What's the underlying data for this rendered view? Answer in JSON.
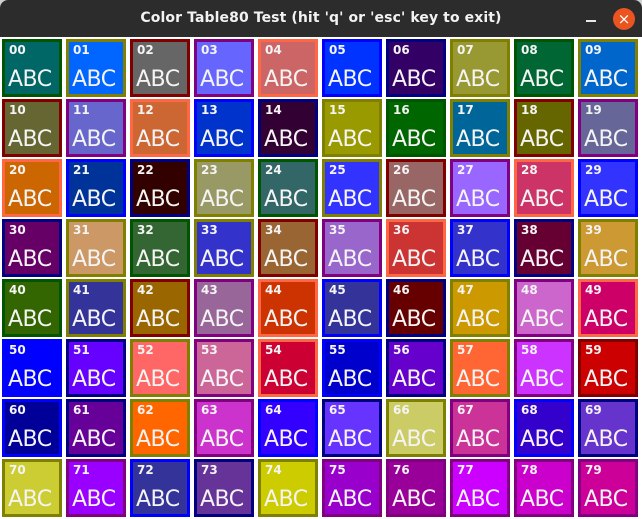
{
  "window": {
    "title": "Color Table80 Test  (hit 'q' or 'esc' key to exit)",
    "close_icon": "×"
  },
  "cell_text": "ABC",
  "cells": [
    {
      "label": "00",
      "fill": "#006666",
      "border": "#005500"
    },
    {
      "label": "01",
      "fill": "#0066ff",
      "border": "#808000"
    },
    {
      "label": "02",
      "fill": "#666666",
      "border": "#800000"
    },
    {
      "label": "03",
      "fill": "#6666ff",
      "border": "#800080"
    },
    {
      "label": "04",
      "fill": "#cc6666",
      "border": "#ff6644"
    },
    {
      "label": "05",
      "fill": "#0033ff",
      "border": "#0000ff"
    },
    {
      "label": "06",
      "fill": "#330066",
      "border": "#000080"
    },
    {
      "label": "07",
      "fill": "#999933",
      "border": "#808000"
    },
    {
      "label": "08",
      "fill": "#006633",
      "border": "#005500"
    },
    {
      "label": "09",
      "fill": "#0066cc",
      "border": "#808000"
    },
    {
      "label": "10",
      "fill": "#666633",
      "border": "#800000"
    },
    {
      "label": "11",
      "fill": "#6666cc",
      "border": "#800080"
    },
    {
      "label": "12",
      "fill": "#cc6633",
      "border": "#ff6644"
    },
    {
      "label": "13",
      "fill": "#0033cc",
      "border": "#0000ff"
    },
    {
      "label": "14",
      "fill": "#330033",
      "border": "#000080"
    },
    {
      "label": "15",
      "fill": "#999900",
      "border": "#808000"
    },
    {
      "label": "16",
      "fill": "#006600",
      "border": "#005500"
    },
    {
      "label": "17",
      "fill": "#006699",
      "border": "#808000"
    },
    {
      "label": "18",
      "fill": "#666600",
      "border": "#800000"
    },
    {
      "label": "19",
      "fill": "#666699",
      "border": "#800080"
    },
    {
      "label": "20",
      "fill": "#cc6600",
      "border": "#ff6644"
    },
    {
      "label": "21",
      "fill": "#003399",
      "border": "#0000ff"
    },
    {
      "label": "22",
      "fill": "#330000",
      "border": "#000080"
    },
    {
      "label": "23",
      "fill": "#999966",
      "border": "#808000"
    },
    {
      "label": "24",
      "fill": "#336666",
      "border": "#005500"
    },
    {
      "label": "25",
      "fill": "#3333ff",
      "border": "#808000"
    },
    {
      "label": "26",
      "fill": "#996666",
      "border": "#800000"
    },
    {
      "label": "27",
      "fill": "#9966ff",
      "border": "#800080"
    },
    {
      "label": "28",
      "fill": "#cc3366",
      "border": "#ff6644"
    },
    {
      "label": "29",
      "fill": "#3333ff",
      "border": "#0000ff"
    },
    {
      "label": "30",
      "fill": "#660066",
      "border": "#000080"
    },
    {
      "label": "31",
      "fill": "#cc9966",
      "border": "#808000"
    },
    {
      "label": "32",
      "fill": "#336633",
      "border": "#005500"
    },
    {
      "label": "33",
      "fill": "#3333cc",
      "border": "#808000"
    },
    {
      "label": "34",
      "fill": "#996633",
      "border": "#800000"
    },
    {
      "label": "35",
      "fill": "#9966cc",
      "border": "#800080"
    },
    {
      "label": "36",
      "fill": "#cc3333",
      "border": "#ff6644"
    },
    {
      "label": "37",
      "fill": "#3333cc",
      "border": "#0000ff"
    },
    {
      "label": "38",
      "fill": "#660033",
      "border": "#000080"
    },
    {
      "label": "39",
      "fill": "#cc9933",
      "border": "#808000"
    },
    {
      "label": "40",
      "fill": "#336600",
      "border": "#005500"
    },
    {
      "label": "41",
      "fill": "#333399",
      "border": "#808000"
    },
    {
      "label": "42",
      "fill": "#996600",
      "border": "#800000"
    },
    {
      "label": "43",
      "fill": "#996699",
      "border": "#800080"
    },
    {
      "label": "44",
      "fill": "#cc3300",
      "border": "#ff6644"
    },
    {
      "label": "45",
      "fill": "#333399",
      "border": "#0000ff"
    },
    {
      "label": "46",
      "fill": "#660000",
      "border": "#000080"
    },
    {
      "label": "47",
      "fill": "#cc9900",
      "border": "#808000"
    },
    {
      "label": "48",
      "fill": "#cc66cc",
      "border": "#800080"
    },
    {
      "label": "49",
      "fill": "#cc0066",
      "border": "#ff6644"
    },
    {
      "label": "50",
      "fill": "#0000ff",
      "border": "#0000ff"
    },
    {
      "label": "51",
      "fill": "#6600ff",
      "border": "#000080"
    },
    {
      "label": "52",
      "fill": "#ff6666",
      "border": "#808000"
    },
    {
      "label": "53",
      "fill": "#cc6699",
      "border": "#800080"
    },
    {
      "label": "54",
      "fill": "#cc0033",
      "border": "#ff6644"
    },
    {
      "label": "55",
      "fill": "#0000cc",
      "border": "#0000ff"
    },
    {
      "label": "56",
      "fill": "#6600cc",
      "border": "#000080"
    },
    {
      "label": "57",
      "fill": "#ff6633",
      "border": "#808000"
    },
    {
      "label": "58",
      "fill": "#cc33ff",
      "border": "#800080"
    },
    {
      "label": "59",
      "fill": "#cc0000",
      "border": "#800000"
    },
    {
      "label": "60",
      "fill": "#000099",
      "border": "#0000ff"
    },
    {
      "label": "61",
      "fill": "#660099",
      "border": "#000080"
    },
    {
      "label": "62",
      "fill": "#ff6600",
      "border": "#808000"
    },
    {
      "label": "63",
      "fill": "#cc33cc",
      "border": "#800080"
    },
    {
      "label": "64",
      "fill": "#3300ff",
      "border": "#0000ff"
    },
    {
      "label": "65",
      "fill": "#6633ff",
      "border": "#000080"
    },
    {
      "label": "66",
      "fill": "#cccc66",
      "border": "#808000"
    },
    {
      "label": "67",
      "fill": "#cc3399",
      "border": "#800080"
    },
    {
      "label": "68",
      "fill": "#3300cc",
      "border": "#0000ff"
    },
    {
      "label": "69",
      "fill": "#6633cc",
      "border": "#000080"
    },
    {
      "label": "70",
      "fill": "#cccc33",
      "border": "#808000"
    },
    {
      "label": "71",
      "fill": "#9900ff",
      "border": "#800080"
    },
    {
      "label": "72",
      "fill": "#333399",
      "border": "#0000ff"
    },
    {
      "label": "73",
      "fill": "#663399",
      "border": "#000080"
    },
    {
      "label": "74",
      "fill": "#cccc00",
      "border": "#808000"
    },
    {
      "label": "75",
      "fill": "#9900cc",
      "border": "#800080"
    },
    {
      "label": "76",
      "fill": "#990099",
      "border": "#800080"
    },
    {
      "label": "77",
      "fill": "#cc00ff",
      "border": "#800080"
    },
    {
      "label": "78",
      "fill": "#cc00cc",
      "border": "#800080"
    },
    {
      "label": "79",
      "fill": "#cc0099",
      "border": "#800080"
    }
  ]
}
